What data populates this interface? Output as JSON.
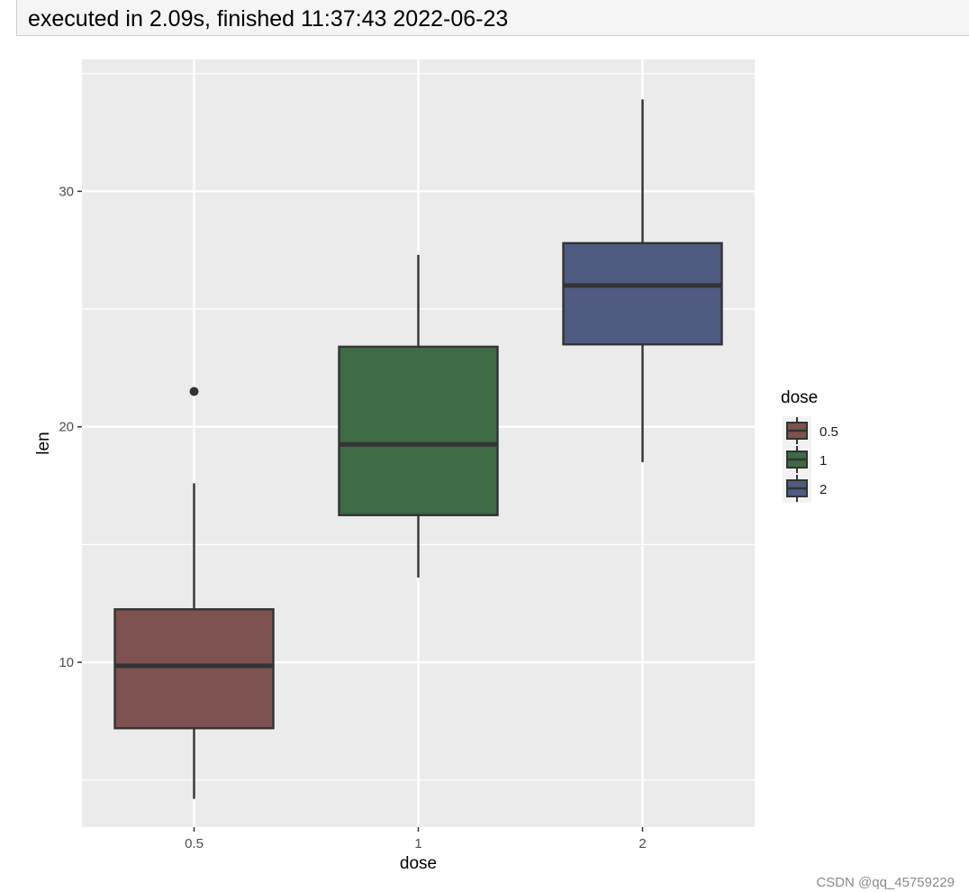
{
  "status": {
    "text": "executed in 2.09s, finished 11:37:43 2022-06-23"
  },
  "watermark": "CSDN @qq_45759229",
  "colors": {
    "panel_bg": "#ebebeb",
    "grid": "#ffffff",
    "box_outline": "#333333",
    "axis_text": "#4d4d4d"
  },
  "chart_data": {
    "type": "boxplot",
    "xlabel": "dose",
    "ylabel": "len",
    "categories": [
      "0.5",
      "1",
      "2"
    ],
    "ylim": [
      3.0,
      35.6
    ],
    "yticks": [
      10,
      20,
      30
    ],
    "grid": true,
    "boxes": [
      {
        "category": "0.5",
        "min": 4.2,
        "q1": 7.2,
        "median": 9.85,
        "q3": 12.25,
        "max": 17.6,
        "outliers": [
          21.5
        ],
        "color": "#7d5250"
      },
      {
        "category": "1",
        "min": 13.6,
        "q1": 16.25,
        "median": 19.25,
        "q3": 23.4,
        "max": 27.3,
        "outliers": [],
        "color": "#3e6a46"
      },
      {
        "category": "2",
        "min": 18.5,
        "q1": 23.5,
        "median": 26.0,
        "q3": 27.8,
        "max": 33.9,
        "outliers": [],
        "color": "#4f5b80"
      }
    ],
    "legend": {
      "title": "dose",
      "position": "right",
      "entries": [
        "0.5",
        "1",
        "2"
      ]
    }
  }
}
